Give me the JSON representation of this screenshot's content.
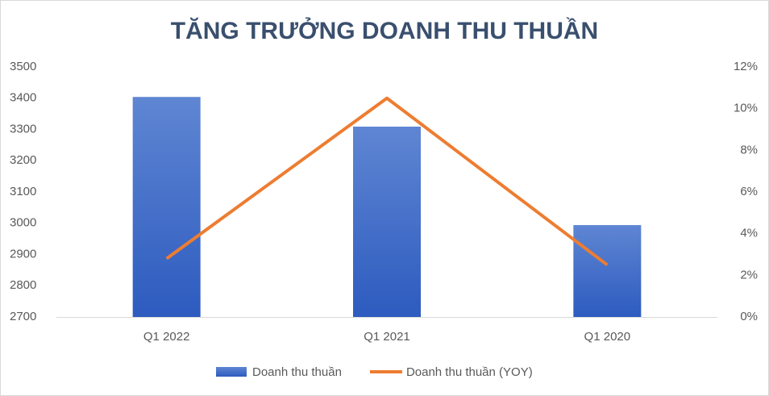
{
  "chart_data": {
    "type": "bar-line",
    "title": "TĂNG TRƯỞNG DOANH THU THUẦN",
    "categories": [
      "Q1 2022",
      "Q1 2021",
      "Q1 2020"
    ],
    "series": [
      {
        "name": "Doanh thu thuần",
        "color": "#4472c4",
        "values": [
          3404,
          3309,
          2994
        ]
      },
      {
        "name": "Doanh thu thuần (YOY)",
        "color": "#ed7d31",
        "axis": "y2",
        "values": [
          2.8,
          10.5,
          2.5
        ]
      }
    ],
    "ylim": [
      2700,
      3500
    ],
    "yticks": [
      2700,
      2800,
      2900,
      3000,
      3100,
      3200,
      3300,
      3400,
      3500
    ],
    "y2lim": [
      0,
      12
    ],
    "y2ticks": [
      {
        "value": 0,
        "label": "0%"
      },
      {
        "value": 2,
        "label": "2%"
      },
      {
        "value": 4,
        "label": "4%"
      },
      {
        "value": 6,
        "label": "6%"
      },
      {
        "value": 8,
        "label": "8%"
      },
      {
        "value": 10,
        "label": "10%"
      },
      {
        "value": 12,
        "label": "12%"
      }
    ],
    "grid": false,
    "legend": "bottom"
  }
}
